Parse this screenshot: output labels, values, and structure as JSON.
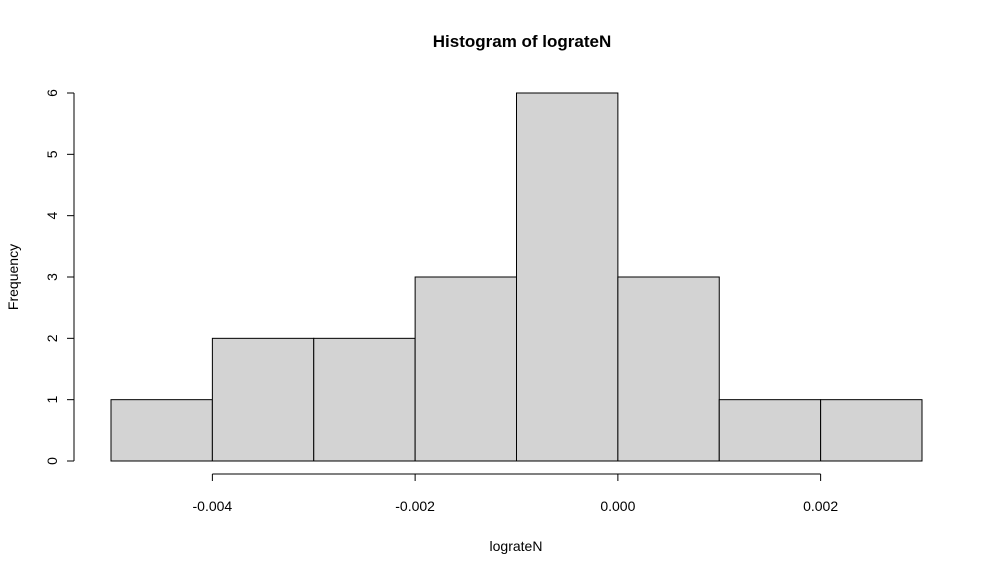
{
  "chart_data": {
    "type": "bar",
    "title": "Histogram of lograteN",
    "xlabel": "lograteN",
    "ylabel": "Frequency",
    "bin_edges": [
      -0.005,
      -0.004,
      -0.003,
      -0.002,
      -0.001,
      0.0,
      0.001,
      0.002,
      0.003
    ],
    "values": [
      1,
      2,
      2,
      3,
      6,
      3,
      1,
      1
    ],
    "x_ticks": [
      {
        "value": -0.004,
        "label": "-0.004"
      },
      {
        "value": -0.002,
        "label": "-0.002"
      },
      {
        "value": 0.0,
        "label": "0.000"
      },
      {
        "value": 0.002,
        "label": "0.002"
      }
    ],
    "y_ticks": [
      {
        "value": 0,
        "label": "0"
      },
      {
        "value": 1,
        "label": "1"
      },
      {
        "value": 2,
        "label": "2"
      },
      {
        "value": 3,
        "label": "3"
      },
      {
        "value": 4,
        "label": "4"
      },
      {
        "value": 5,
        "label": "5"
      },
      {
        "value": 6,
        "label": "6"
      }
    ],
    "xlim": [
      -0.005,
      0.003
    ],
    "ylim": [
      0,
      6
    ],
    "grid": false,
    "colors": {
      "bar_fill": "#d3d3d3",
      "bar_stroke": "#000000"
    }
  }
}
